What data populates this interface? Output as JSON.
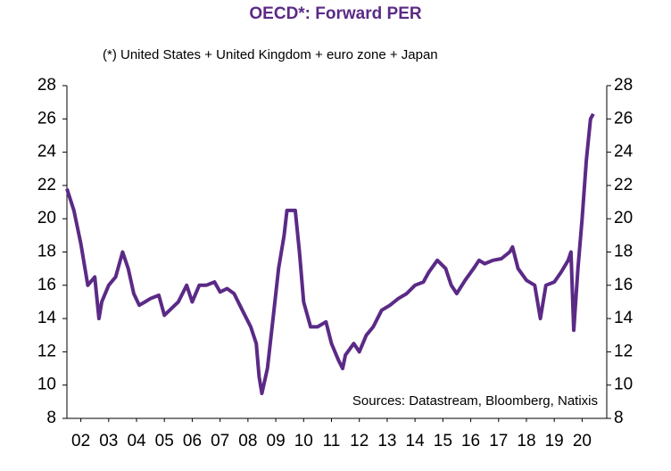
{
  "chart_data": {
    "type": "line",
    "title": "OECD*: Forward PER",
    "subtitle": "(*) United States  + United Kingdom  + euro zone  + Japan",
    "annotation": "Sources: Datastream, Bloomberg, Natixis",
    "x": [
      2.0,
      2.25,
      2.5,
      2.75,
      3.0,
      3.15,
      3.25,
      3.5,
      3.75,
      4.0,
      4.2,
      4.4,
      4.6,
      4.8,
      5.0,
      5.3,
      5.5,
      5.75,
      6.0,
      6.3,
      6.5,
      6.75,
      7.0,
      7.3,
      7.5,
      7.75,
      8.0,
      8.3,
      8.6,
      8.8,
      8.9,
      9.0,
      9.2,
      9.4,
      9.6,
      9.8,
      9.9,
      10.2,
      10.35,
      10.5,
      10.75,
      11.0,
      11.3,
      11.5,
      11.75,
      11.9,
      12.0,
      12.3,
      12.5,
      12.75,
      13.0,
      13.3,
      13.6,
      13.9,
      14.2,
      14.5,
      14.8,
      15.0,
      15.3,
      15.6,
      15.8,
      16.0,
      16.3,
      16.6,
      16.8,
      17.0,
      17.3,
      17.6,
      17.9,
      18.0,
      18.2,
      18.5,
      18.8,
      19.0,
      19.2,
      19.5,
      19.75,
      20.0,
      20.1,
      20.2,
      20.35,
      20.5,
      20.65,
      20.8,
      20.9
    ],
    "series": [
      {
        "color": "#5b2a86",
        "values": [
          21.8,
          20.5,
          18.5,
          16,
          16.5,
          14,
          15,
          16,
          16.5,
          18,
          17,
          15.5,
          14.8,
          15,
          15.2,
          15.4,
          14.2,
          14.6,
          15,
          16,
          15,
          16,
          16,
          16.2,
          15.6,
          15.8,
          15.5,
          14.5,
          13.5,
          12.5,
          10.5,
          9.5,
          11,
          14,
          17,
          19,
          20.5,
          20.5,
          18,
          15,
          13.5,
          13.5,
          13.8,
          12.5,
          11.5,
          11,
          11.8,
          12.5,
          12,
          13,
          13.5,
          14.5,
          14.8,
          15.2,
          15.5,
          16,
          16.2,
          16.8,
          17.5,
          17,
          16,
          15.5,
          16.3,
          17,
          17.5,
          17.3,
          17.5,
          17.6,
          18,
          18.3,
          17,
          16.3,
          16,
          14,
          16,
          16.2,
          16.8,
          17.5,
          18,
          13.3,
          17,
          20,
          23.5,
          26,
          26.3
        ]
      }
    ],
    "xlim": [
      2,
      21
    ],
    "xticks": [
      {
        "value": 2.5,
        "label": "02"
      },
      {
        "value": 3.5,
        "label": "03"
      },
      {
        "value": 4.5,
        "label": "04"
      },
      {
        "value": 5.5,
        "label": "05"
      },
      {
        "value": 6.5,
        "label": "06"
      },
      {
        "value": 7.5,
        "label": "07"
      },
      {
        "value": 8.5,
        "label": "08"
      },
      {
        "value": 9.5,
        "label": "09"
      },
      {
        "value": 10.5,
        "label": "10"
      },
      {
        "value": 11.5,
        "label": "11"
      },
      {
        "value": 12.5,
        "label": "12"
      },
      {
        "value": 13.5,
        "label": "13"
      },
      {
        "value": 14.5,
        "label": "14"
      },
      {
        "value": 15.5,
        "label": "15"
      },
      {
        "value": 16.5,
        "label": "16"
      },
      {
        "value": 17.5,
        "label": "17"
      },
      {
        "value": 18.5,
        "label": "18"
      },
      {
        "value": 19.5,
        "label": "19"
      },
      {
        "value": 20.5,
        "label": "20"
      }
    ],
    "ylim": [
      8,
      28
    ],
    "yticks": [
      8,
      10,
      12,
      14,
      16,
      18,
      20,
      22,
      24,
      26,
      28
    ],
    "y2lim": [
      8,
      28
    ],
    "y2ticks": [
      8,
      10,
      12,
      14,
      16,
      18,
      20,
      22,
      24,
      26,
      28
    ]
  }
}
